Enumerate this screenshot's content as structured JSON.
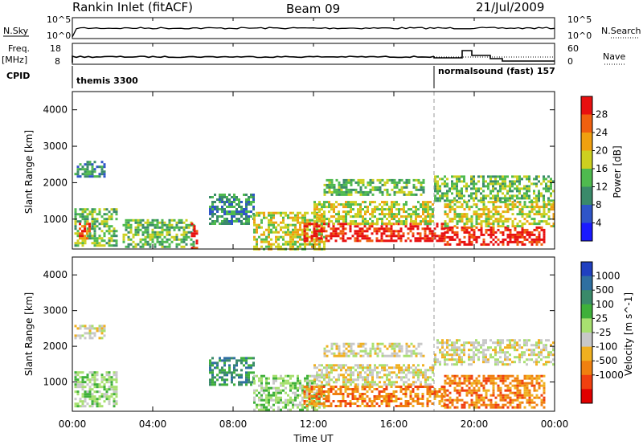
{
  "header": {
    "station": "Rankin Inlet (fitACF)",
    "beam": "Beam 09",
    "date": "21/Jul/2009"
  },
  "nsky_panel": {
    "left_label": "N.Sky",
    "right_label": "N.Search",
    "left_ticks": [
      "10^5",
      "10^0"
    ],
    "right_ticks": [
      "10^5",
      "10^0"
    ]
  },
  "freq_panel": {
    "left_label_1": "Freq.",
    "left_label_2": "[MHz]",
    "right_label": "Nave",
    "left_ticks": [
      "18",
      "8"
    ],
    "right_ticks": [
      "60",
      "0"
    ],
    "cpid_label": "CPID",
    "cpid_segments": [
      {
        "label": "themis 3300",
        "start_hour": 0
      },
      {
        "label": "normalsound (fast) 157",
        "start_hour": 18
      }
    ]
  },
  "chart_data": [
    {
      "type": "heatmap",
      "name": "power",
      "xlabel": "",
      "ylabel": "Slant Range [km]",
      "xlim": [
        0,
        24
      ],
      "ylim": [
        180,
        4500
      ],
      "yticks": [
        1000,
        2000,
        3000,
        4000
      ],
      "colorbar": {
        "label": "Power [dB]",
        "range": [
          0,
          32
        ],
        "ticks": [
          "4",
          "8",
          "12",
          "16",
          "20",
          "24",
          "28"
        ],
        "colors": [
          "#1a1aff",
          "#2f55c8",
          "#3a8a6a",
          "#4fba4f",
          "#cdd020",
          "#f0a010",
          "#f06010",
          "#e81010"
        ]
      },
      "regions": [
        {
          "t0": 0.1,
          "t1": 1.6,
          "r0": 2200,
          "r1": 2600,
          "level": 2
        },
        {
          "t0": 0.1,
          "t1": 2.2,
          "r0": 300,
          "r1": 1300,
          "level": 3
        },
        {
          "t0": 0.2,
          "t1": 0.9,
          "r0": 500,
          "r1": 900,
          "level": 6
        },
        {
          "t0": 2.5,
          "t1": 6.0,
          "r0": 250,
          "r1": 1000,
          "level": 3
        },
        {
          "t0": 5.9,
          "t1": 6.2,
          "r0": 200,
          "r1": 900,
          "level": 7
        },
        {
          "t0": 6.8,
          "t1": 9.0,
          "r0": 900,
          "r1": 1700,
          "level": 2
        },
        {
          "t0": 9.0,
          "t1": 12.5,
          "r0": 200,
          "r1": 1200,
          "level": 4
        },
        {
          "t0": 11.5,
          "t1": 18.5,
          "r0": 400,
          "r1": 900,
          "level": 7
        },
        {
          "t0": 12.0,
          "t1": 18.0,
          "r0": 900,
          "r1": 1500,
          "level": 4
        },
        {
          "t0": 12.5,
          "t1": 17.5,
          "r0": 1700,
          "r1": 2100,
          "level": 3
        },
        {
          "t0": 18.0,
          "t1": 24.0,
          "r0": 1500,
          "r1": 2200,
          "level": 3
        },
        {
          "t0": 18.5,
          "t1": 23.5,
          "r0": 300,
          "r1": 800,
          "level": 7
        },
        {
          "t0": 18.5,
          "t1": 24.0,
          "r0": 800,
          "r1": 1500,
          "level": 4
        }
      ]
    },
    {
      "type": "heatmap",
      "name": "velocity",
      "xlabel": "Time UT",
      "ylabel": "Slant Range [km]",
      "xlim": [
        0,
        24
      ],
      "ylim": [
        180,
        4500
      ],
      "yticks": [
        1000,
        2000,
        3000,
        4000
      ],
      "xticks": [
        "00:00",
        "04:00",
        "08:00",
        "12:00",
        "16:00",
        "20:00",
        "00:00"
      ],
      "colorbar": {
        "label": "Velocity [m s^-1]",
        "ticks": [
          "1000",
          "500",
          "100",
          "25",
          "-25",
          "-100",
          "-500",
          "-1000"
        ],
        "colors": [
          "#2040c0",
          "#2f6fa0",
          "#3a8a6a",
          "#3fb03a",
          "#a8e070",
          "#c8c8c8",
          "#f0b020",
          "#f08010",
          "#f04010",
          "#e00000"
        ]
      },
      "regions": [
        {
          "t0": 0.1,
          "t1": 1.6,
          "r0": 2200,
          "r1": 2600,
          "level": 5
        },
        {
          "t0": 0.1,
          "t1": 2.2,
          "r0": 300,
          "r1": 1300,
          "level": 4
        },
        {
          "t0": 6.8,
          "t1": 9.0,
          "r0": 900,
          "r1": 1700,
          "level": 2
        },
        {
          "t0": 9.0,
          "t1": 12.5,
          "r0": 200,
          "r1": 1200,
          "level": 4
        },
        {
          "t0": 11.5,
          "t1": 18.5,
          "r0": 300,
          "r1": 900,
          "level": 7
        },
        {
          "t0": 12.0,
          "t1": 18.0,
          "r0": 900,
          "r1": 1500,
          "level": 5
        },
        {
          "t0": 12.5,
          "t1": 17.5,
          "r0": 1700,
          "r1": 2100,
          "level": 5
        },
        {
          "t0": 18.0,
          "t1": 24.0,
          "r0": 1500,
          "r1": 2200,
          "level": 5
        },
        {
          "t0": 18.5,
          "t1": 23.5,
          "r0": 300,
          "r1": 1200,
          "level": 7
        }
      ]
    }
  ]
}
